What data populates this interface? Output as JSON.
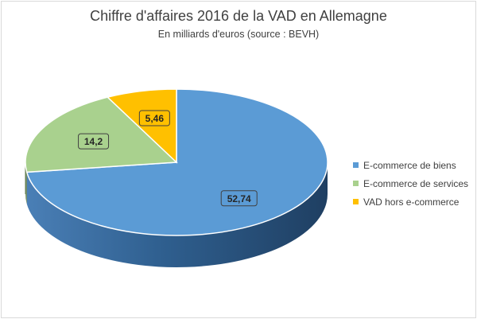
{
  "chart_data": {
    "type": "pie",
    "title": "Chiffre d'affaires 2016 de la VAD en Allemagne",
    "subtitle": "En milliards d'euros (source : BEVH)",
    "categories": [
      "E-commerce de biens",
      "E-commerce de services",
      "VAD hors e-commerce"
    ],
    "values": [
      52.74,
      14.2,
      5.46
    ],
    "data_labels": [
      "52,74",
      "14,2",
      "5,46"
    ],
    "colors": [
      "#5b9bd5",
      "#a9d18e",
      "#ffc000"
    ],
    "style": "3d",
    "legend_position": "right"
  }
}
